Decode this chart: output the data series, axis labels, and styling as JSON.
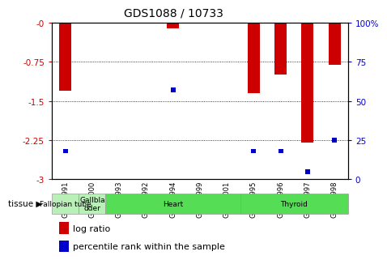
{
  "title": "GDS1088 / 10733",
  "samples": [
    "GSM39991",
    "GSM40000",
    "GSM39993",
    "GSM39992",
    "GSM39994",
    "GSM39999",
    "GSM40001",
    "GSM39995",
    "GSM39996",
    "GSM39997",
    "GSM39998"
  ],
  "log_ratios": [
    -1.3,
    0.0,
    0.0,
    0.0,
    -0.1,
    0.0,
    0.0,
    -1.35,
    -1.0,
    -2.3,
    -0.8
  ],
  "percentile_ranks": [
    18,
    0,
    0,
    0,
    57,
    0,
    0,
    18,
    18,
    5,
    25
  ],
  "ylim_left": [
    -3,
    0
  ],
  "ylim_right": [
    0,
    100
  ],
  "yticks_left": [
    -3,
    -2.25,
    -1.5,
    -0.75,
    0
  ],
  "yticks_right": [
    0,
    25,
    50,
    75,
    100
  ],
  "bar_color_red": "#cc0000",
  "bar_color_blue": "#0000cc",
  "tissue_groups": [
    {
      "label": "Fallopian tube",
      "start": 0,
      "end": 1
    },
    {
      "label": "Gallbla\ndder",
      "start": 1,
      "end": 2
    },
    {
      "label": "Heart",
      "start": 2,
      "end": 7
    },
    {
      "label": "Thyroid",
      "start": 7,
      "end": 11
    }
  ],
  "tissue_colors": {
    "Fallopian tube": "#b8f0b8",
    "Gallbla\ndder": "#b8f0b8",
    "Heart": "#55dd55",
    "Thyroid": "#55dd55"
  },
  "legend_items": [
    {
      "label": "log ratio",
      "color": "#cc0000"
    },
    {
      "label": "percentile rank within the sample",
      "color": "#0000cc"
    }
  ],
  "bar_width": 0.45,
  "blue_bar_width": 0.18,
  "blue_bar_height": 0.09,
  "grid_color": "black",
  "xlabel_color": "#cc0000",
  "ylabel_right_color": "#0000cc",
  "tick_fontsize": 7.5,
  "sample_fontsize": 6.0,
  "title_fontsize": 10
}
